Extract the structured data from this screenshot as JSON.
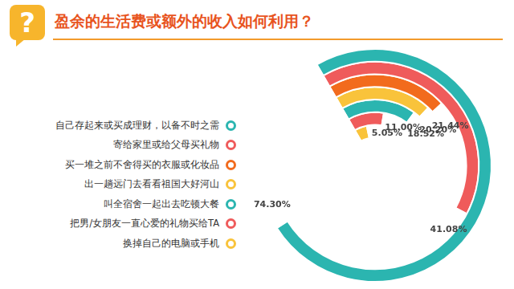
{
  "chart_data": {
    "type": "radial_bar",
    "title": "盈余的生活费或额外的收入如何利用？",
    "annotations": [
      "?"
    ],
    "categories": [
      "自己存起来或买成理财，以备不时之需",
      "寄给家里或给父母买礼物",
      "买一堆之前不舍得买的衣服或化妆品",
      "出一趟远门去看看祖国大好河山",
      "叫全宿舍一起出去吃顿大餐",
      "把男/女朋友一直心爱的礼物买给TA",
      "换掉自己的电脑或手机"
    ],
    "values": [
      74.3,
      41.08,
      21.44,
      20.2,
      18.52,
      11,
      5.05
    ],
    "value_labels": [
      "74.30%",
      "41.08%",
      "21.44%",
      "20.20%",
      "18.52%",
      "11.00%",
      "5.05%"
    ],
    "colors": [
      "#2bb5b0",
      "#ef5b5b",
      "#f26b1d",
      "#f9c33b",
      "#2bb5b0",
      "#ef5b5b",
      "#f9c33b"
    ],
    "ylim": [
      0,
      100
    ],
    "data_labels": true,
    "legend": "left",
    "tick_labels": false
  }
}
